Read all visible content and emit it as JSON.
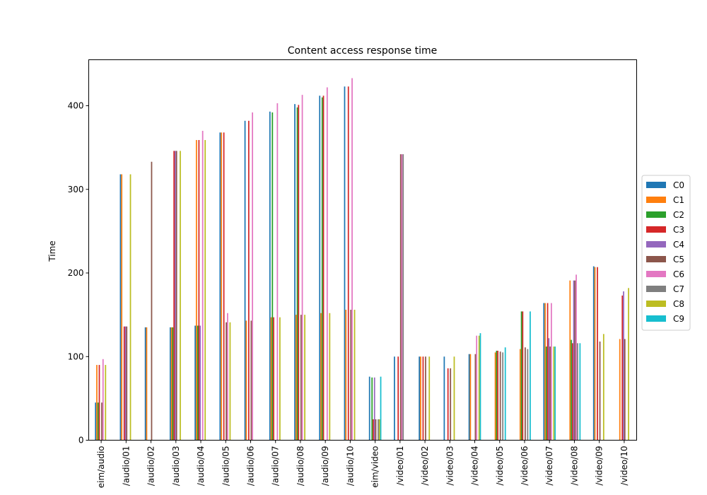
{
  "chart_data": {
    "type": "bar",
    "title": "Content access response time",
    "xlabel": "",
    "ylabel": "Time",
    "ylim": [
      0,
      455
    ],
    "yticks": [
      0,
      100,
      200,
      300,
      400
    ],
    "categories": [
      "eim/audio",
      "/audio/01",
      "/audio/02",
      "/audio/03",
      "/audio/04",
      "/audio/05",
      "/audio/06",
      "/audio/07",
      "/audio/08",
      "/audio/09",
      "/audio/10",
      "eim/video",
      "/video/01",
      "/video/02",
      "/video/03",
      "/video/04",
      "/video/05",
      "/video/06",
      "/video/07",
      "/video/08",
      "/video/09",
      "/video/10"
    ],
    "legend_position": "center right, outside plot",
    "grid": false,
    "series": [
      {
        "name": "C0",
        "color": "#1f77b4",
        "values": [
          45,
          318,
          135,
          135,
          137,
          368,
          382,
          393,
          402,
          412,
          423,
          76,
          100,
          100,
          100,
          103,
          0,
          0,
          164,
          0,
          208,
          0
        ]
      },
      {
        "name": "C1",
        "color": "#ff7f0e",
        "values": [
          90,
          318,
          135,
          135,
          359,
          368,
          143,
          147,
          150,
          152,
          156,
          0,
          0,
          100,
          0,
          103,
          105,
          109,
          164,
          191,
          207,
          121
        ]
      },
      {
        "name": "C2",
        "color": "#2ca02c",
        "values": [
          45,
          0,
          0,
          135,
          137,
          0,
          0,
          392,
          398,
          410,
          0,
          75,
          0,
          0,
          0,
          0,
          107,
          154,
          112,
          120,
          0,
          0
        ]
      },
      {
        "name": "C3",
        "color": "#d62728",
        "values": [
          90,
          136,
          0,
          346,
          359,
          368,
          382,
          147,
          401,
          412,
          423,
          25,
          100,
          100,
          86,
          0,
          107,
          154,
          164,
          116,
          207,
          173
        ]
      },
      {
        "name": "C4",
        "color": "#9467bd",
        "values": [
          0,
          136,
          0,
          346,
          137,
          0,
          0,
          0,
          0,
          0,
          0,
          75,
          0,
          0,
          0,
          0,
          0,
          0,
          122,
          191,
          0,
          178
        ]
      },
      {
        "name": "C5",
        "color": "#8c564b",
        "values": [
          45,
          136,
          333,
          346,
          0,
          141,
          143,
          0,
          150,
          0,
          156,
          25,
          342,
          100,
          86,
          103,
          106,
          111,
          112,
          191,
          118,
          121
        ]
      },
      {
        "name": "C6",
        "color": "#e377c2",
        "values": [
          97,
          0,
          0,
          0,
          370,
          152,
          392,
          403,
          413,
          422,
          433,
          0,
          342,
          0,
          0,
          125,
          0,
          0,
          164,
          198,
          0,
          0
        ]
      },
      {
        "name": "C7",
        "color": "#7f7f7f",
        "values": [
          0,
          0,
          0,
          0,
          0,
          0,
          0,
          0,
          0,
          0,
          0,
          25,
          342,
          0,
          0,
          0,
          105,
          109,
          0,
          116,
          0,
          0
        ]
      },
      {
        "name": "C8",
        "color": "#bcbd22",
        "values": [
          90,
          318,
          0,
          346,
          359,
          141,
          0,
          147,
          150,
          152,
          156,
          25,
          0,
          100,
          100,
          125,
          0,
          0,
          112,
          0,
          127,
          182
        ]
      },
      {
        "name": "C9",
        "color": "#17becf",
        "values": [
          0,
          0,
          0,
          0,
          0,
          0,
          0,
          0,
          0,
          0,
          0,
          76,
          0,
          0,
          0,
          128,
          111,
          154,
          112,
          116,
          0,
          0
        ]
      }
    ]
  }
}
